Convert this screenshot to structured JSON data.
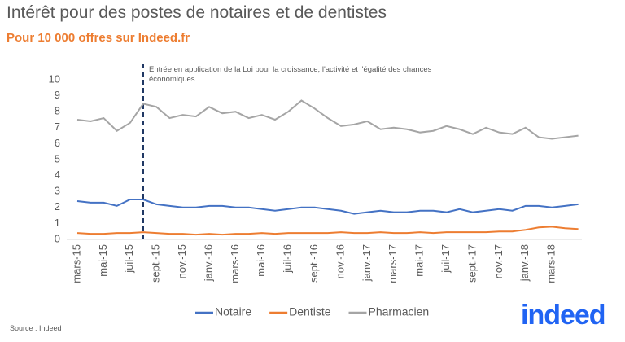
{
  "chart_data": {
    "type": "line",
    "title": "Intérêt pour des postes de notaires et de dentistes",
    "subtitle": "Pour 10 000 offres sur Indeed.fr",
    "annotation": "Entrée en application de la Loi pour la croissance, l'activité et l'égalité des chances économiques",
    "source": "Source : Indeed",
    "logo": "indeed",
    "categories": [
      "mars-15",
      null,
      "mai-15",
      null,
      "juil-15",
      null,
      "sept.-15",
      null,
      "nov.-15",
      null,
      "janv.-16",
      null,
      "mars-16",
      null,
      "mai-16",
      null,
      "juil-16",
      null,
      "sept.-16",
      null,
      "nov.-16",
      null,
      "janv.-17",
      null,
      "mars-17",
      null,
      "mai-17",
      null,
      "juil-17",
      null,
      "sept.-17",
      null,
      "nov.-17",
      null,
      "janv.-18",
      null,
      "mars-18",
      null,
      null
    ],
    "series": [
      {
        "name": "Notaire",
        "color": "#4472c4",
        "values": [
          2.4,
          2.3,
          2.3,
          2.1,
          2.5,
          2.5,
          2.2,
          2.1,
          2.0,
          2.0,
          2.1,
          2.1,
          2.0,
          2.0,
          1.9,
          1.8,
          1.9,
          2.0,
          2.0,
          1.9,
          1.8,
          1.6,
          1.7,
          1.8,
          1.7,
          1.7,
          1.8,
          1.8,
          1.7,
          1.9,
          1.7,
          1.8,
          1.9,
          1.8,
          2.1,
          2.1,
          2.0,
          2.1,
          2.2
        ]
      },
      {
        "name": "Dentiste",
        "color": "#ed7d31",
        "values": [
          0.4,
          0.35,
          0.35,
          0.4,
          0.4,
          0.45,
          0.4,
          0.35,
          0.35,
          0.3,
          0.35,
          0.3,
          0.35,
          0.35,
          0.4,
          0.35,
          0.4,
          0.4,
          0.4,
          0.4,
          0.45,
          0.4,
          0.4,
          0.45,
          0.4,
          0.4,
          0.45,
          0.4,
          0.45,
          0.45,
          0.45,
          0.45,
          0.5,
          0.5,
          0.6,
          0.75,
          0.8,
          0.7,
          0.65
        ]
      },
      {
        "name": "Pharmacien",
        "color": "#a5a5a5",
        "values": [
          7.5,
          7.4,
          7.6,
          6.8,
          7.3,
          8.5,
          8.3,
          7.6,
          7.8,
          7.7,
          8.3,
          7.9,
          8.0,
          7.6,
          7.8,
          7.5,
          8.0,
          8.7,
          8.2,
          7.6,
          7.1,
          7.2,
          7.4,
          6.9,
          7.0,
          6.9,
          6.7,
          6.8,
          7.1,
          6.9,
          6.6,
          7.0,
          6.7,
          6.6,
          7.0,
          6.4,
          6.3,
          6.4,
          6.5
        ]
      }
    ],
    "ylim": [
      0,
      10
    ],
    "yticks": [
      0,
      1,
      2,
      3,
      4,
      5,
      6,
      7,
      8,
      9,
      10
    ],
    "grid": false
  }
}
